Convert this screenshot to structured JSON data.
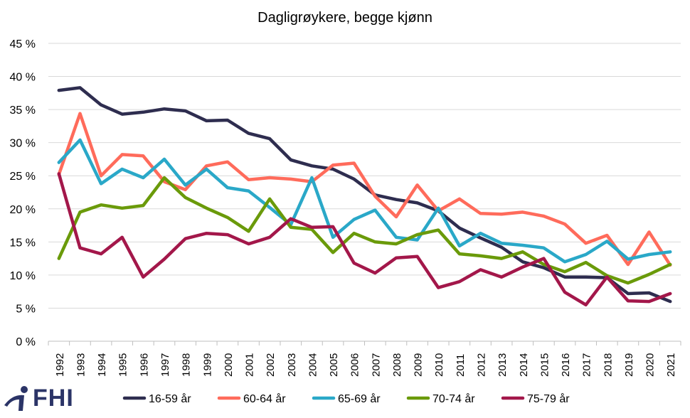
{
  "chart_data": {
    "type": "line",
    "title": "Dagligrøykere, begge kjønn",
    "xlabel": "",
    "ylabel": "",
    "ylim": [
      0,
      45
    ],
    "yticks": [
      0,
      5,
      10,
      15,
      20,
      25,
      30,
      35,
      40,
      45
    ],
    "ytick_labels": [
      "0 %",
      "5 %",
      "10 %",
      "15 %",
      "20 %",
      "25 %",
      "30 %",
      "35 %",
      "40 %",
      "45 %"
    ],
    "grid": "horizontal",
    "legend_position": "bottom",
    "categories": [
      "1992",
      "1993",
      "1994",
      "1995",
      "1996",
      "1997",
      "1998",
      "1999",
      "2000",
      "2001",
      "2002",
      "2003",
      "2004",
      "2005",
      "2006",
      "2007",
      "2008",
      "2009",
      "2010",
      "2011",
      "2012",
      "2013",
      "2014",
      "2015",
      "2016",
      "2017",
      "2018",
      "2019",
      "2020",
      "2021"
    ],
    "series": [
      {
        "name": "16-59 år",
        "color": "#2e2d4f",
        "values": [
          37.9,
          38.3,
          35.7,
          34.3,
          34.6,
          35.1,
          34.8,
          33.3,
          33.4,
          31.4,
          30.6,
          27.4,
          26.5,
          26.0,
          24.5,
          22.1,
          21.4,
          20.9,
          19.7,
          17.1,
          15.6,
          14.2,
          12.0,
          11.1,
          9.7,
          9.7,
          9.6,
          7.2,
          7.3,
          6.0
        ]
      },
      {
        "name": "60-64 år",
        "color": "#ff6b5b",
        "values": [
          25.2,
          34.4,
          25.0,
          28.2,
          28.0,
          24.1,
          22.9,
          26.5,
          27.1,
          24.4,
          24.7,
          24.5,
          24.1,
          26.6,
          26.9,
          21.9,
          18.8,
          23.6,
          19.7,
          21.5,
          19.3,
          19.2,
          19.5,
          18.9,
          17.7,
          14.8,
          16.0,
          11.6,
          16.5,
          11.5
        ]
      },
      {
        "name": "65-69 år",
        "color": "#2aa8c8",
        "values": [
          27.0,
          30.4,
          23.8,
          26.0,
          24.7,
          27.5,
          23.6,
          26.0,
          23.2,
          22.7,
          20.2,
          17.6,
          24.7,
          15.7,
          18.4,
          19.8,
          15.7,
          15.3,
          20.1,
          14.4,
          16.3,
          14.8,
          14.5,
          14.1,
          12.0,
          13.1,
          15.1,
          12.4,
          13.1,
          13.5
        ]
      },
      {
        "name": "70-74 år",
        "color": "#6a9a0a",
        "values": [
          12.5,
          19.5,
          20.6,
          20.1,
          20.5,
          24.7,
          21.7,
          20.1,
          18.7,
          16.6,
          21.5,
          17.2,
          16.9,
          13.4,
          16.3,
          15.0,
          14.7,
          16.1,
          16.8,
          13.2,
          12.9,
          12.5,
          13.5,
          11.6,
          10.5,
          11.9,
          9.9,
          8.8,
          10.1,
          11.6
        ]
      },
      {
        "name": "75-79 år",
        "color": "#a3174a",
        "values": [
          25.3,
          14.1,
          13.2,
          15.7,
          9.7,
          12.4,
          15.5,
          16.3,
          16.1,
          14.7,
          15.7,
          18.5,
          17.2,
          17.3,
          11.8,
          10.3,
          12.6,
          12.8,
          8.1,
          9.0,
          10.8,
          9.7,
          11.2,
          12.5,
          7.4,
          5.5,
          9.7,
          6.1,
          6.0,
          7.2
        ]
      }
    ]
  },
  "logo": {
    "text": "FHI"
  }
}
